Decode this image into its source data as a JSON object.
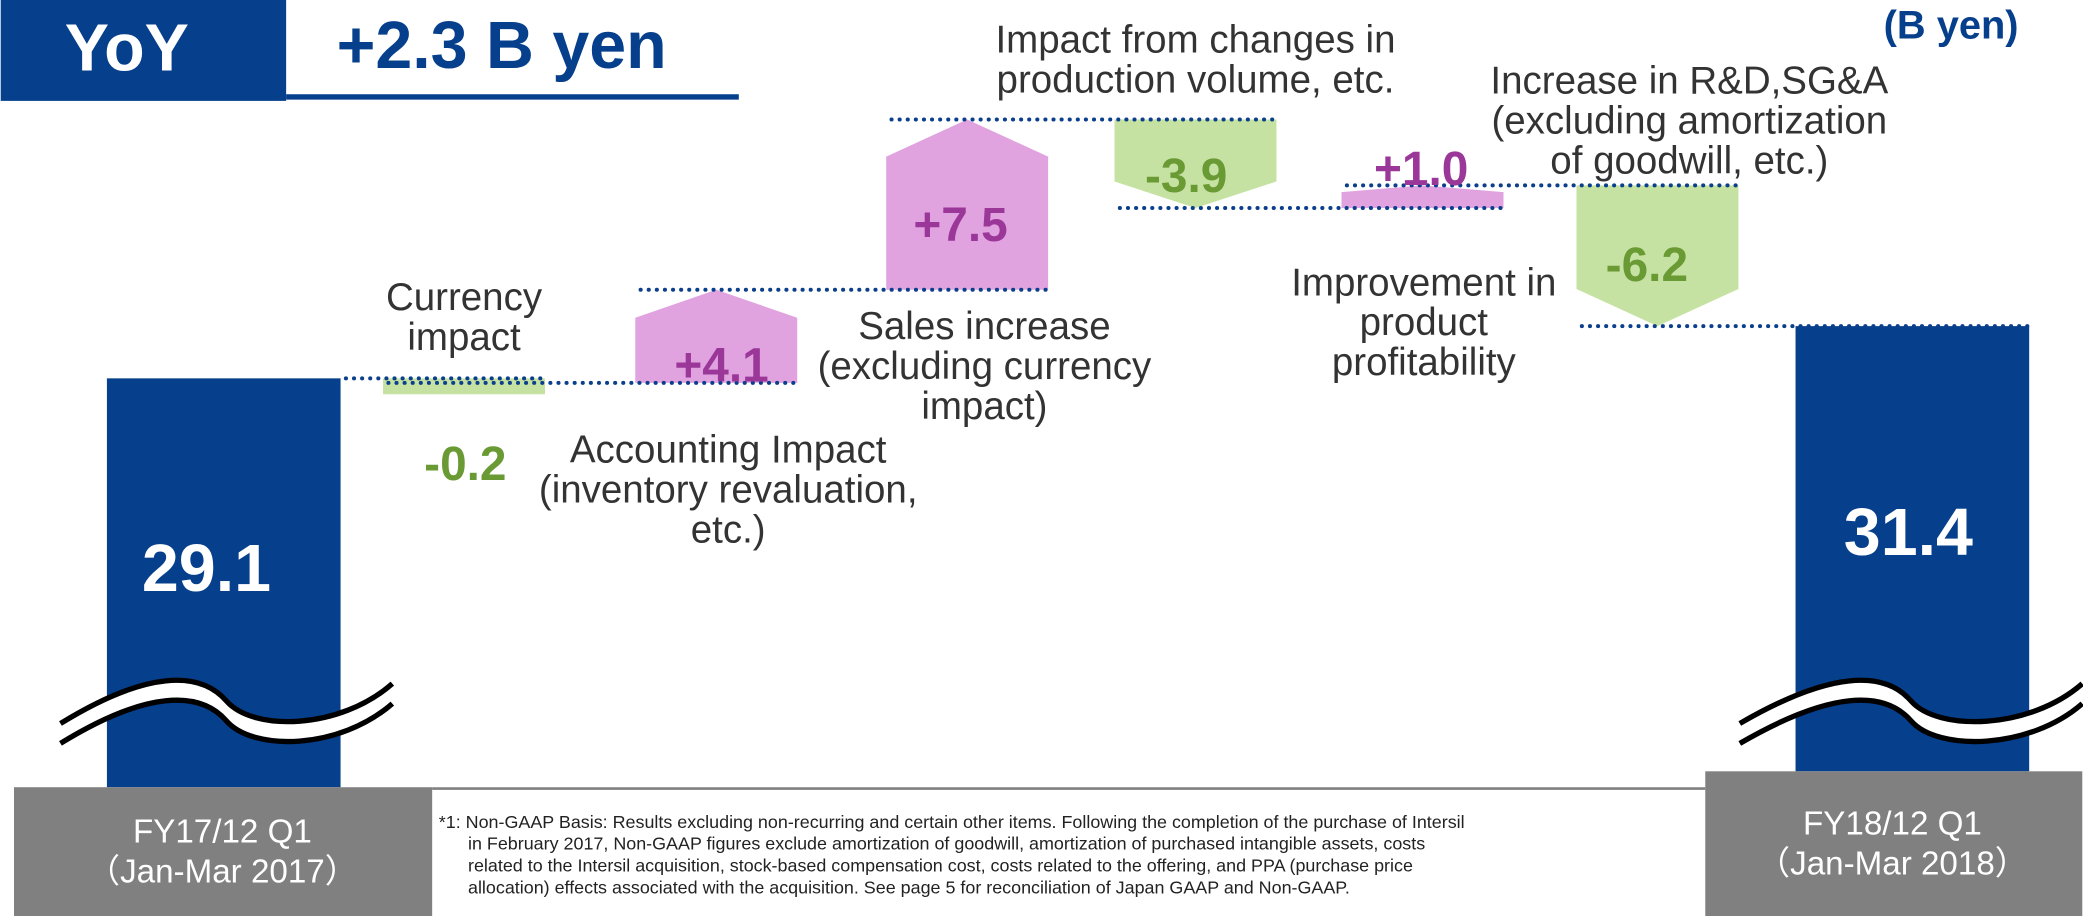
{
  "chart_data": {
    "type": "waterfall",
    "badge": "YoY",
    "title": "+2.3 B yen",
    "unit": "(B yen)",
    "categories": [
      "FY17/12 Q1\n（Jan-Mar 2017）",
      "Currency\nimpact",
      "Accounting Impact\n(inventory revaluation,\netc.)",
      "Sales increase\n(excluding currency\nimpact)",
      "Impact from changes in\nproduction volume, etc.",
      "Improvement in\nproduct\nprofitability",
      "Increase in R&D,SG&A\n(excluding amortization\nof goodwill, etc.)",
      "FY18/12 Q1\n（Jan-Mar 2018）"
    ],
    "values": [
      29.1,
      -0.2,
      4.1,
      7.5,
      -3.9,
      1.0,
      -6.2,
      31.4
    ],
    "value_labels": [
      "29.1",
      "-0.2",
      "+4.1",
      "+7.5",
      "-3.9",
      "+1.0",
      "-6.2",
      "31.4"
    ],
    "totals": [
      0,
      7
    ],
    "total_color": "#063f8c",
    "increase_color": "#e0a3e0",
    "decrease_color": "#c6e2a3",
    "increase_label_color": "#9a3799",
    "decrease_label_color": "#6a9a34"
  },
  "footnote": [
    "*1: Non-GAAP Basis: Results excluding non-recurring and certain other items. Following the completion of the purchase of Intersil",
    "in February 2017, Non-GAAP figures exclude amortization of goodwill, amortization of purchased intangible assets, costs",
    "related to the Intersil acquisition, stock-based compensation cost, costs related to the offering, and PPA (purchase price",
    "allocation) effects associated with the acquisition. See page 5 for reconciliation of Japan GAAP and Non-GAAP."
  ]
}
